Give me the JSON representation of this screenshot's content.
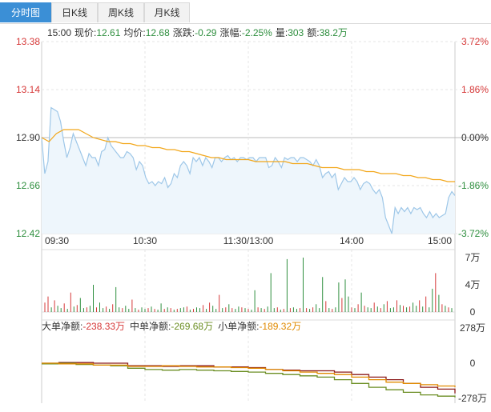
{
  "tabs": [
    {
      "label": "分时图",
      "active": true
    },
    {
      "label": "日K线",
      "active": false
    },
    {
      "label": "周K线",
      "active": false
    },
    {
      "label": "月K线",
      "active": false
    }
  ],
  "info": {
    "time": "15:00",
    "price_label": "现价:",
    "price": "12.61",
    "avg_label": "均价:",
    "avg": "12.68",
    "change_label": "涨跌:",
    "change": "-0.29",
    "pct_label": "涨幅:",
    "pct": "-2.25%",
    "vol_label": "量:",
    "vol": "303",
    "amt_label": "额:",
    "amt": "38.2万"
  },
  "flow": {
    "big_label": "大单净额:",
    "big": "-238.33万",
    "mid_label": "中单净额:",
    "mid": "-269.68万",
    "small_label": "小单净额:",
    "small": "-189.32万"
  },
  "colors": {
    "price_line": "#9ec7e8",
    "price_fill": "#eef6fc",
    "avg_line": "#f2a71b",
    "up": "#d63838",
    "down": "#2f8f3f",
    "flat": "#333333",
    "big_flow": "#8b1a1a",
    "mid_flow": "#6b8e23",
    "small_flow": "#e08a00",
    "tab_active": "#3b8fd6"
  },
  "chart_data": [
    {
      "type": "line",
      "name": "intraday-price",
      "x_ticks": [
        "09:30",
        "10:30",
        "11:30/13:00",
        "14:00",
        "15:00"
      ],
      "y_left_ticks": [
        "13.38",
        "13.14",
        "12.90",
        "12.66",
        "12.42"
      ],
      "y_right_ticks": [
        "3.72%",
        "1.86%",
        "0.00%",
        "-1.86%",
        "-3.72%"
      ],
      "ylim": [
        12.42,
        13.38
      ],
      "prev_close": 12.9,
      "series": [
        {
          "key": "price",
          "values": [
            12.9,
            12.72,
            12.78,
            13.05,
            13.04,
            13.03,
            12.98,
            12.88,
            12.8,
            12.85,
            12.92,
            12.88,
            12.84,
            12.8,
            12.76,
            12.82,
            12.8,
            12.8,
            12.76,
            12.83,
            12.84,
            12.9,
            12.86,
            12.84,
            12.82,
            12.8,
            12.8,
            12.83,
            12.82,
            12.8,
            12.74,
            12.78,
            12.76,
            12.7,
            12.67,
            12.68,
            12.66,
            12.68,
            12.67,
            12.7,
            12.65,
            12.67,
            12.72,
            12.7,
            12.76,
            12.78,
            12.76,
            12.72,
            12.8,
            12.78,
            12.8,
            12.76,
            12.8,
            12.78,
            12.75,
            12.8,
            12.8,
            12.78,
            12.8,
            12.81,
            12.79,
            12.8,
            12.78,
            12.8,
            12.8,
            12.79,
            12.8,
            12.8,
            12.78,
            12.8,
            12.8,
            12.8,
            12.75,
            12.76,
            12.8,
            12.78,
            12.75,
            12.8,
            12.79,
            12.8,
            12.8,
            12.78,
            12.8,
            12.8,
            12.79,
            12.78,
            12.76,
            12.79,
            12.76,
            12.7,
            12.72,
            12.73,
            12.7,
            12.72,
            12.64,
            12.67,
            12.7,
            12.68,
            12.68,
            12.7,
            12.68,
            12.64,
            12.67,
            12.68,
            12.67,
            12.64,
            12.62,
            12.64,
            12.6,
            12.5,
            12.46,
            12.42,
            12.55,
            12.52,
            12.55,
            12.53,
            12.55,
            12.52,
            12.55,
            12.54,
            12.55,
            12.52,
            12.5,
            12.53,
            12.5,
            12.52,
            12.5,
            12.51,
            12.52,
            12.6,
            12.63,
            12.61
          ]
        },
        {
          "key": "avg",
          "values": [
            12.9,
            12.88,
            12.92,
            12.94,
            12.94,
            12.94,
            12.92,
            12.9,
            12.89,
            12.88,
            12.88,
            12.87,
            12.87,
            12.86,
            12.86,
            12.85,
            12.85,
            12.84,
            12.84,
            12.83,
            12.83,
            12.82,
            12.81,
            12.8,
            12.8,
            12.79,
            12.79,
            12.79,
            12.79,
            12.78,
            12.78,
            12.78,
            12.78,
            12.78,
            12.77,
            12.77,
            12.77,
            12.76,
            12.75,
            12.75,
            12.75,
            12.74,
            12.74,
            12.74,
            12.73,
            12.73,
            12.72,
            12.72,
            12.72,
            12.71,
            12.71,
            12.7,
            12.7,
            12.69,
            12.69,
            12.68,
            12.68
          ]
        }
      ]
    },
    {
      "type": "bar",
      "name": "volume",
      "y_ticks": [
        "7万",
        "4万",
        "0"
      ],
      "ylim": [
        0,
        7
      ],
      "values": [
        1.2,
        2.0,
        0.6,
        1.5,
        0.8,
        0.5,
        1.1,
        0.4,
        2.5,
        0.7,
        0.9,
        1.8,
        0.5,
        0.6,
        0.8,
        3.5,
        0.6,
        1.2,
        0.5,
        0.7,
        0.4,
        1.0,
        3.2,
        0.6,
        0.5,
        0.8,
        0.4,
        1.6,
        0.5,
        0.3,
        0.6,
        0.4,
        0.5,
        0.7,
        0.4,
        0.3,
        1.1,
        0.4,
        0.6,
        0.5,
        0.3,
        0.4,
        0.5,
        0.6,
        0.7,
        0.3,
        0.4,
        0.6,
        0.5,
        0.9,
        0.4,
        1.2,
        0.8,
        0.4,
        2.2,
        0.5,
        0.6,
        1.0,
        0.5,
        0.4,
        0.7,
        0.6,
        0.5,
        0.4,
        0.3,
        2.8,
        0.6,
        0.5,
        0.4,
        0.7,
        5.0,
        0.5,
        0.6,
        0.3,
        0.4,
        6.8,
        0.5,
        0.6,
        0.4,
        0.5,
        7.0,
        0.5,
        0.4,
        0.6,
        1.0,
        0.5,
        4.5,
        1.4,
        0.5,
        0.4,
        0.6,
        3.8,
        1.8,
        4.2,
        2.0,
        0.6,
        0.5,
        1.0,
        2.5,
        0.8,
        0.6,
        0.5,
        1.2,
        0.7,
        0.5,
        1.0,
        1.4,
        0.5,
        0.6,
        1.5,
        0.9,
        0.8,
        0.6,
        0.7,
        1.2,
        0.8,
        1.5,
        0.7,
        2.0,
        0.6,
        3.0,
        5.0,
        2.2,
        1.0,
        0.8,
        0.6,
        0.5
      ],
      "direction": [
        "u",
        "u",
        "d",
        "u",
        "d",
        "d",
        "u",
        "d",
        "u",
        "d",
        "u",
        "d",
        "d",
        "u",
        "d",
        "d",
        "u",
        "d",
        "d",
        "u",
        "d",
        "u",
        "d",
        "d",
        "u",
        "d",
        "d",
        "u",
        "d",
        "u",
        "d",
        "d",
        "u",
        "d",
        "u",
        "d",
        "d",
        "u",
        "d",
        "u",
        "d",
        "u",
        "d",
        "d",
        "u",
        "d",
        "u",
        "d",
        "d",
        "u",
        "d",
        "u",
        "d",
        "d",
        "u",
        "d",
        "u",
        "d",
        "u",
        "d",
        "d",
        "u",
        "d",
        "u",
        "d",
        "d",
        "u",
        "d",
        "u",
        "d",
        "d",
        "d",
        "u",
        "d",
        "u",
        "d",
        "u",
        "d",
        "d",
        "u",
        "d",
        "u",
        "d",
        "u",
        "d",
        "d",
        "d",
        "u",
        "d",
        "u",
        "d",
        "d",
        "u",
        "d",
        "d",
        "u",
        "d",
        "u",
        "d",
        "u",
        "d",
        "d",
        "u",
        "d",
        "u",
        "d",
        "u",
        "d",
        "d",
        "u",
        "d",
        "u",
        "d",
        "u",
        "d",
        "d",
        "u",
        "d",
        "u",
        "d",
        "d",
        "u",
        "d",
        "u",
        "d",
        "u",
        "d"
      ]
    },
    {
      "type": "line",
      "name": "net-flow",
      "y_ticks": [
        "278万",
        "0",
        "-278万"
      ],
      "ylim": [
        -278,
        278
      ],
      "series": [
        {
          "key": "big",
          "values": [
            0,
            5,
            5,
            0,
            0,
            -20,
            -20,
            -25,
            -20,
            -20,
            -30,
            -30,
            -35,
            -50,
            -55,
            -60,
            -60,
            -70,
            -90,
            -110,
            -130,
            -160,
            -190,
            -205,
            -238
          ]
        },
        {
          "key": "mid",
          "values": [
            -5,
            0,
            -10,
            -15,
            -20,
            -40,
            -50,
            -55,
            -50,
            -55,
            -60,
            -65,
            -70,
            -80,
            -90,
            -100,
            -110,
            -130,
            -160,
            -190,
            -210,
            -230,
            -250,
            -260,
            -270
          ]
        },
        {
          "key": "small",
          "values": [
            0,
            -5,
            -5,
            -15,
            -15,
            -25,
            -25,
            -20,
            -25,
            -30,
            -30,
            -35,
            -40,
            -50,
            -60,
            -70,
            -80,
            -90,
            -110,
            -130,
            -150,
            -160,
            -170,
            -180,
            -189
          ]
        }
      ]
    }
  ]
}
